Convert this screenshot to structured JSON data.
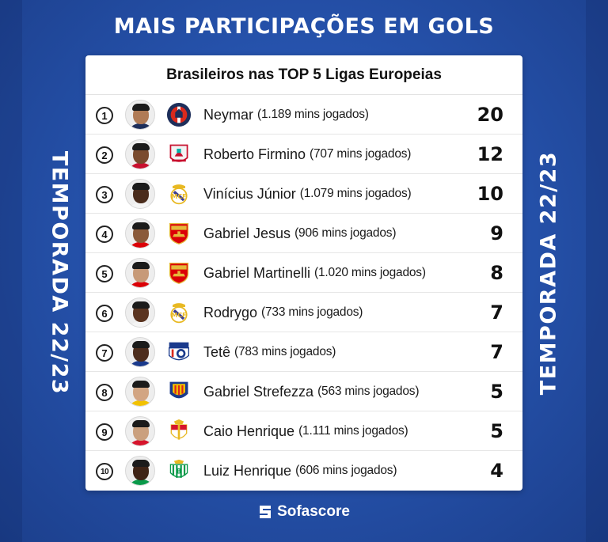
{
  "headline": "MAIS PARTICIPAÇÕES EM GOLS",
  "side_label": "TEMPORADA 22/23",
  "card_title": "Brasileiros nas TOP 5 Ligas Europeias",
  "rows": [
    {
      "rank": "1",
      "name": "Neymar",
      "mins": "(1.189 mins jogados)",
      "goals": "20",
      "club_icon": "psg-crest-icon",
      "skin": "#b07b56",
      "shirt": "#1d2e5a"
    },
    {
      "rank": "2",
      "name": "Roberto Firmino",
      "mins": "(707 mins jogados)",
      "goals": "12",
      "club_icon": "liverpool-crest-icon",
      "skin": "#7a4b2e",
      "shirt": "#c8102e"
    },
    {
      "rank": "3",
      "name": "Vinícius Júnior",
      "mins": "(1.079 mins jogados)",
      "goals": "10",
      "club_icon": "real-madrid-crest-icon",
      "skin": "#4a2c1c",
      "shirt": "#f5f5f5"
    },
    {
      "rank": "4",
      "name": "Gabriel Jesus",
      "mins": "(906 mins jogados)",
      "goals": "9",
      "club_icon": "arsenal-crest-icon",
      "skin": "#8a5a3a",
      "shirt": "#db0007"
    },
    {
      "rank": "5",
      "name": "Gabriel Martinelli",
      "mins": "(1.020 mins jogados)",
      "goals": "8",
      "club_icon": "arsenal-crest-icon",
      "skin": "#c79a78",
      "shirt": "#db0007"
    },
    {
      "rank": "6",
      "name": "Rodrygo",
      "mins": "(733 mins jogados)",
      "goals": "7",
      "club_icon": "real-madrid-crest-icon",
      "skin": "#5a3420",
      "shirt": "#f5f5f5"
    },
    {
      "rank": "7",
      "name": "Tetê",
      "mins": "(783 mins jogados)",
      "goals": "7",
      "club_icon": "lyon-crest-icon",
      "skin": "#4d2d1d",
      "shirt": "#1a3a8c"
    },
    {
      "rank": "8",
      "name": "Gabriel Strefezza",
      "mins": "(563 mins jogados)",
      "goals": "5",
      "club_icon": "lecce-crest-icon",
      "skin": "#d2a583",
      "shirt": "#f2c200"
    },
    {
      "rank": "9",
      "name": "Caio Henrique",
      "mins": "(1.111 mins jogados)",
      "goals": "5",
      "club_icon": "monaco-crest-icon",
      "skin": "#caa07e",
      "shirt": "#d6142c"
    },
    {
      "rank": "10",
      "name": "Luiz Henrique",
      "mins": "(606 mins jogados)",
      "goals": "4",
      "club_icon": "betis-crest-icon",
      "skin": "#3f2416",
      "shirt": "#0a9a4a"
    }
  ],
  "brand": "Sofascore"
}
